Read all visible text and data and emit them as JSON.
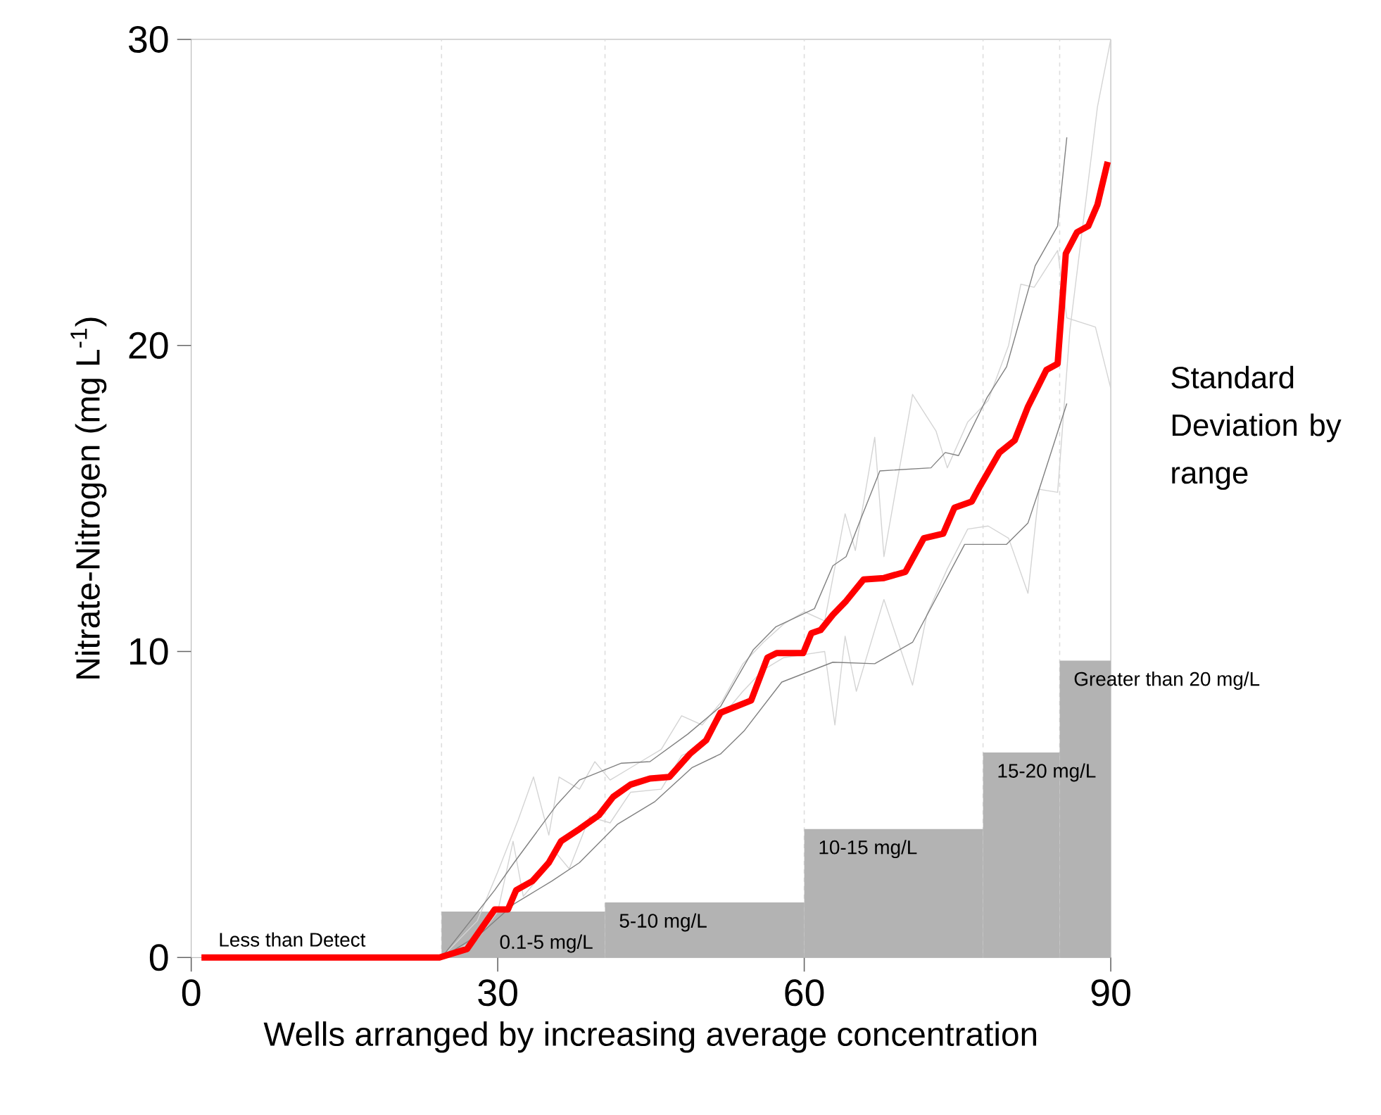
{
  "chart_data": {
    "type": "line",
    "xlabel": "Wells arranged by increasing average concentration",
    "ylabel": "Nitrate-Nitrogen (mg L$^{-1}$)",
    "xlim": [
      0,
      90
    ],
    "ylim": [
      0,
      30
    ],
    "xticks": [
      0,
      30,
      60,
      90
    ],
    "yticks": [
      0,
      10,
      20,
      30
    ],
    "grid": false,
    "marker": "none",
    "line_style": "solid",
    "ref_lines": [
      {
        "axis": "x",
        "value": 24.5,
        "color": "#dddddd",
        "line_style": "dashed"
      },
      {
        "axis": "x",
        "value": 40.5,
        "color": "#dddddd",
        "line_style": "dashed"
      },
      {
        "axis": "x",
        "value": 60,
        "color": "#dddddd",
        "line_style": "dashed"
      },
      {
        "axis": "x",
        "value": 77.5,
        "color": "#dddddd",
        "line_style": "dashed"
      },
      {
        "axis": "x",
        "value": 85,
        "color": "#dddddd",
        "line_style": "dashed"
      }
    ],
    "series": [
      {
        "type": "histogram",
        "color": "#b3b3b3",
        "bins": [
          24.5,
          40.5,
          60,
          77.5,
          85,
          90
        ],
        "values": [
          1.5,
          1.8,
          4.2,
          6.7,
          9.7
        ]
      },
      {
        "color": "#d4d4d4",
        "x": [
          24.5,
          28,
          30,
          32,
          33.5,
          35,
          36,
          38,
          39.5,
          41,
          43,
          46,
          48,
          50,
          52,
          54,
          56,
          58,
          60,
          62,
          64,
          65,
          66.9,
          67.8,
          70.6,
          72.9,
          74,
          76,
          78,
          80,
          81.2,
          82.5,
          84.8,
          85.7,
          88.5,
          90
        ],
        "values": [
          0,
          1.2,
          2.8,
          4.5,
          5.9,
          4.0,
          5.9,
          5.5,
          6.4,
          5.8,
          6.2,
          6.8,
          7.9,
          7.6,
          8.4,
          9.6,
          10.3,
          10.9,
          11.3,
          11.0,
          14.5,
          13.3,
          17.0,
          13.1,
          18.4,
          17.2,
          16.0,
          17.5,
          18.2,
          20.0,
          22.0,
          21.9,
          23.1,
          20.9,
          20.6,
          18.6
        ]
      },
      {
        "color": "#d4d4d4",
        "x": [
          24.5,
          28,
          30,
          31.5,
          32.5,
          34,
          35.5,
          37,
          39,
          41,
          43,
          46,
          48,
          50,
          52,
          54,
          56,
          58,
          60,
          62,
          63,
          64,
          65.1,
          67.8,
          70.6,
          72,
          74,
          76,
          78,
          80,
          81.9,
          83,
          84.8,
          86,
          88.7,
          90
        ],
        "values": [
          0,
          0.6,
          1.5,
          3.8,
          2.0,
          2.6,
          3.5,
          2.9,
          4.6,
          4.4,
          5.4,
          5.5,
          6.6,
          6.9,
          7.9,
          8.7,
          9.4,
          9.8,
          9.9,
          10.0,
          7.6,
          10.5,
          8.7,
          11.7,
          8.9,
          11.2,
          12.7,
          14.0,
          14.1,
          13.7,
          11.9,
          15.3,
          15.2,
          20.5,
          27.8,
          30
        ]
      },
      {
        "color": "#808080",
        "x": [
          24.5,
          29.7,
          31.6,
          35.8,
          38,
          42.1,
          44.9,
          48.6,
          51.8,
          55,
          57.2,
          61,
          62.8,
          64.1,
          65.5,
          67.4,
          72.4,
          73.8,
          75.1,
          77.9,
          79.8,
          82.6,
          84.8,
          85.7
        ],
        "values": [
          0,
          2.2,
          3.1,
          5.0,
          5.8,
          6.35,
          6.4,
          7.3,
          8.2,
          10.05,
          10.8,
          11.4,
          12.8,
          13.1,
          14.3,
          15.9,
          16.0,
          16.5,
          16.4,
          18.3,
          19.3,
          22.6,
          23.9,
          26.8
        ]
      },
      {
        "color": "#808080",
        "x": [
          24.8,
          28.4,
          31.6,
          35.3,
          38,
          41.7,
          45.4,
          49,
          51.8,
          54.1,
          57.8,
          60.5,
          62.8,
          66.9,
          70.6,
          75.7,
          79.8,
          81.9,
          83,
          85.7
        ],
        "values": [
          0.05,
          0.8,
          1.75,
          2.5,
          3.1,
          4.35,
          5.1,
          6.2,
          6.65,
          7.4,
          9.0,
          9.35,
          9.65,
          9.6,
          10.3,
          13.5,
          13.5,
          14.2,
          15.3,
          18.1
        ]
      },
      {
        "color": "#ff0000",
        "x": [
          1,
          24.3,
          27,
          29.7,
          31,
          31.8,
          33.4,
          35,
          36.2,
          38,
          39.9,
          41.3,
          43,
          44.9,
          46.8,
          48.8,
          50.4,
          51.8,
          54.8,
          56.4,
          57.3,
          59.9,
          60.7,
          61.6,
          62.8,
          64.1,
          65.8,
          67.8,
          69.9,
          71.7,
          73.6,
          74.7,
          76.4,
          77.2,
          79.1,
          80.6,
          81.9,
          83.7,
          84.8,
          85.6,
          86.7,
          87.8,
          88.7,
          89.7
        ],
        "values": [
          0,
          0,
          0.28,
          1.57,
          1.57,
          2.2,
          2.5,
          3.1,
          3.8,
          4.2,
          4.65,
          5.25,
          5.65,
          5.85,
          5.9,
          6.65,
          7.1,
          8.0,
          8.4,
          9.8,
          9.95,
          9.95,
          10.6,
          10.7,
          11.2,
          11.65,
          12.35,
          12.4,
          12.6,
          13.7,
          13.85,
          14.7,
          14.9,
          15.4,
          16.5,
          16.9,
          18.0,
          19.2,
          19.4,
          23.0,
          23.7,
          23.9,
          24.6,
          26.0
        ]
      }
    ],
    "annotations": [
      "Less than Detect",
      "0.1-5 mg/L",
      "5-10 mg/L",
      "10-15 mg/L",
      "15-20 mg/L",
      "Greater than 20 mg/L",
      "Standard Deviation by range"
    ]
  }
}
